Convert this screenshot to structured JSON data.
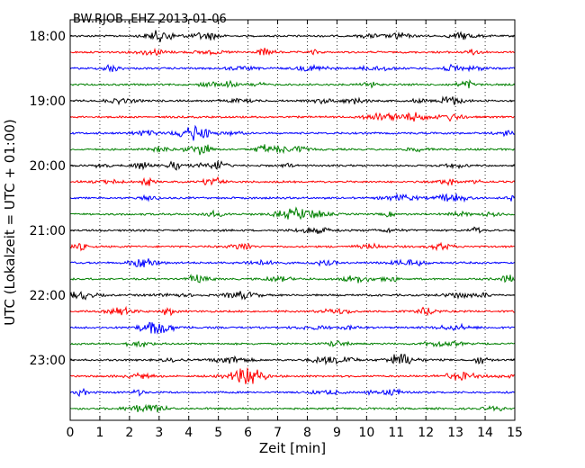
{
  "chart_data": {
    "type": "line",
    "title": "BW.RJOB..EHZ 2013-01-06",
    "xlabel": "Zeit  [min]",
    "ylabel": "UTC (Lokalzeit = UTC + 01:00)",
    "xlim": [
      0,
      15
    ],
    "x_ticks": [
      "0",
      "1",
      "2",
      "3",
      "4",
      "5",
      "6",
      "7",
      "8",
      "9",
      "10",
      "11",
      "12",
      "13",
      "14",
      "15"
    ],
    "y_ticks": [
      "18:00",
      "19:00",
      "20:00",
      "21:00",
      "22:00",
      "23:00"
    ],
    "trace_start_times": [
      "18:00",
      "18:15",
      "18:30",
      "18:45",
      "19:00",
      "19:15",
      "19:30",
      "19:45",
      "20:00",
      "20:15",
      "20:30",
      "20:45",
      "21:00",
      "21:15",
      "21:30",
      "21:45",
      "22:00",
      "22:15",
      "22:30",
      "22:45",
      "23:00",
      "23:15",
      "23:30",
      "23:45"
    ],
    "series_colors": [
      "#000000",
      "#ff0000",
      "#0000ff",
      "#008000"
    ],
    "vertical_grid": true,
    "grid_style": "dotted",
    "trace_count": 24,
    "minutes_per_trace": 15
  }
}
